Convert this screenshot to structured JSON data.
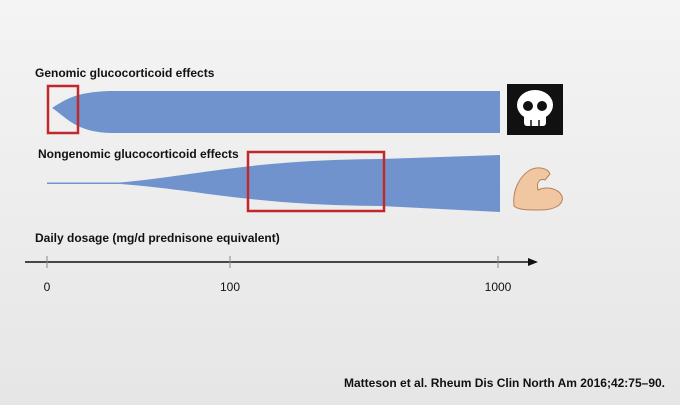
{
  "genomic": {
    "label": "Genomic glucocorticoid effects"
  },
  "nongenomic": {
    "label": "Nongenomic glucocorticoid effects"
  },
  "axis": {
    "label": "Daily dosage (mg/d prednisone equivalent)",
    "ticks": [
      0,
      100,
      1000
    ]
  },
  "citation": "Matteson et al. Rheum Dis Clin North Am 2016;42:75–90."
}
